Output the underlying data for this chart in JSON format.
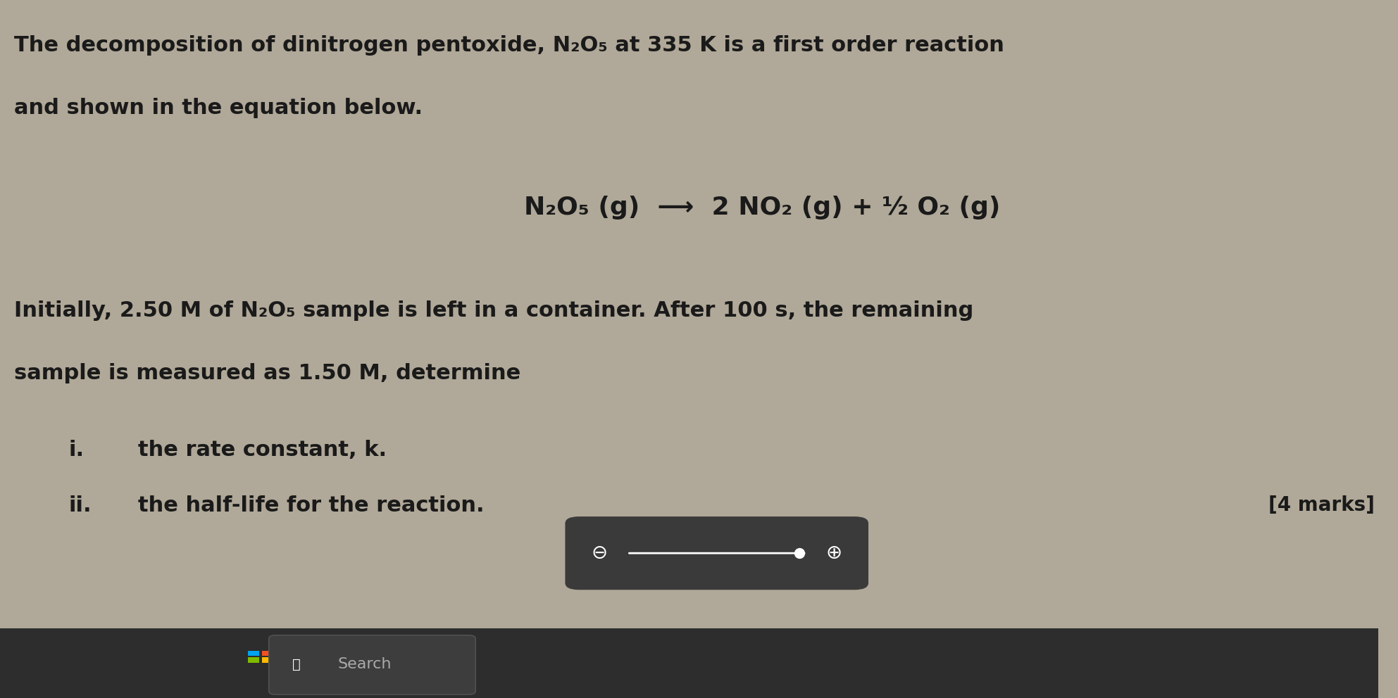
{
  "bg_color": "#b0a898",
  "screen_bg": "#9e9488",
  "title_line1": "The decomposition of dinitrogen pentoxide, N",
  "title_sub1": "2",
  "title_line1b": "O",
  "title_sub2": "5",
  "title_line1c": " at 335 K is a first order reaction",
  "title_line2": "and shown in the equation below.",
  "equation": "N₂O₅ (g)  ⟶  2 NO₂ (g) + ½ O₂ (g)",
  "body_line1": "Initially, 2.50 M of N₂O₅ sample is left in a container. After 100 s, the remaining",
  "body_line2": "sample is measured as 1.50 M, determine",
  "item1_num": "i.",
  "item1_text": "the rate constant, k.",
  "item2_num": "ii.",
  "item2_text": "the half-life for the reaction.",
  "marks_text": "[4 marks]",
  "taskbar_color": "#2d2d2d",
  "search_text": "Search",
  "zoom_bar_bg": "#3a3a3a",
  "font_color_main": "#1a1a1a",
  "font_color_light": "#2a2200"
}
